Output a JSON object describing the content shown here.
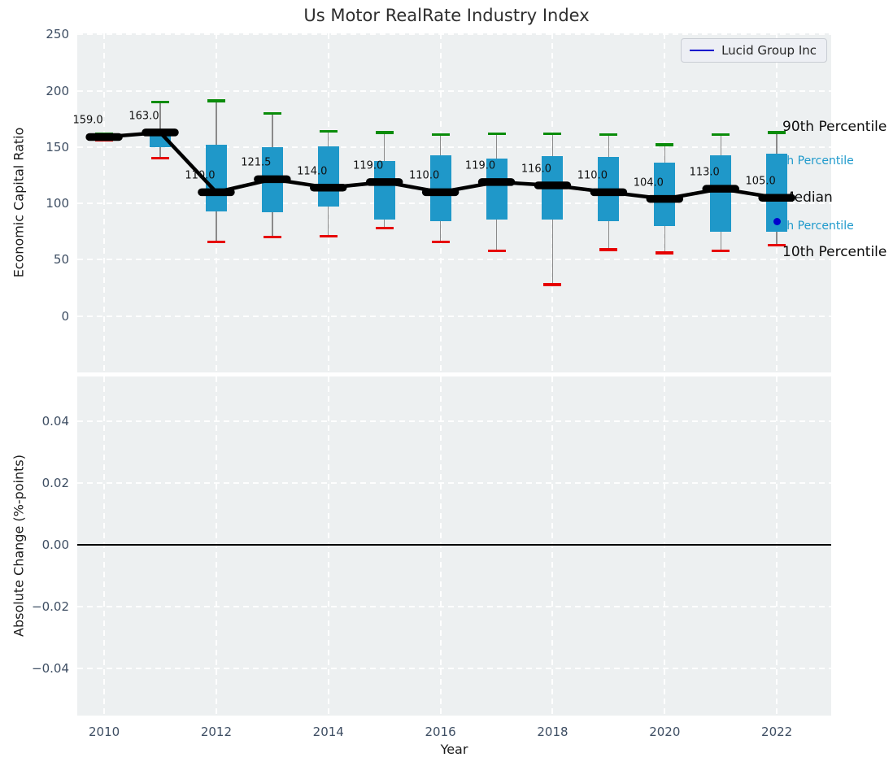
{
  "title": "Us Motor RealRate Industry Index",
  "legend": {
    "label": "Lucid Group Inc"
  },
  "colors": {
    "figure_bg": "#ffffff",
    "axes_bg": "#edf0f1",
    "grid": "#ffffff",
    "box": "#1f98c9",
    "whisker": "#8a8a8a",
    "cap_top": "#0a8c0a",
    "cap_bottom": "#e60000",
    "median": "#000000",
    "lucid": "#0000cd",
    "percentile_label": "#1f9acc",
    "tick": "#3e4e63"
  },
  "chart_data": [
    {
      "type": "boxplot-line",
      "title": "Us Motor RealRate Industry Index",
      "xlabel": "Year",
      "ylabel": "Economic Capital Ratio",
      "xlim": [
        2009.52,
        2022.97
      ],
      "ylim": [
        -50,
        251
      ],
      "xticks": [
        2010,
        2012,
        2014,
        2016,
        2018,
        2020,
        2022
      ],
      "yticks": [
        250,
        200,
        150,
        100,
        50,
        0
      ],
      "grid": true,
      "legend_entries": [
        {
          "label": "Lucid Group Inc",
          "color": "#0000cd",
          "position": "upper right"
        }
      ],
      "years": [
        2010,
        2011,
        2012,
        2013,
        2014,
        2015,
        2016,
        2017,
        2018,
        2019,
        2020,
        2021,
        2022
      ],
      "series": [
        {
          "name": "Median",
          "values": [
            159,
            163,
            110,
            121.5,
            114,
            119,
            110,
            119,
            116,
            110,
            104,
            113,
            105
          ]
        },
        {
          "name": "90th Percentile",
          "values": [
            162,
            190,
            191,
            180,
            164,
            163,
            161,
            162,
            162,
            161,
            152,
            161,
            163
          ]
        },
        {
          "name": "75th Percentile",
          "values": [
            160.5,
            163,
            152,
            150,
            151,
            138,
            143,
            140,
            142,
            141,
            136,
            143,
            144
          ]
        },
        {
          "name": "25th Percentile",
          "values": [
            157.5,
            150,
            93,
            92,
            97,
            86,
            84,
            86,
            86,
            84,
            80,
            75,
            75
          ]
        },
        {
          "name": "10th Percentile",
          "values": [
            156,
            140,
            66,
            70,
            71,
            78,
            66,
            58,
            28,
            59,
            56,
            58,
            63
          ]
        }
      ],
      "median_labels": [
        "159.0",
        "163.0",
        "110.0",
        "121.5",
        "114.0",
        "119.0",
        "110.0",
        "119.0",
        "116.0",
        "110.0",
        "104.0",
        "113.0",
        "105.0"
      ],
      "point": {
        "series": "Lucid Group Inc",
        "year": 2022,
        "value": 84
      },
      "annotations": [
        {
          "text": "90th Percentile",
          "value": 168,
          "style": "black",
          "size": 17
        },
        {
          "text": "75th Percentile",
          "value": 138,
          "style": "cyan",
          "size": 14
        },
        {
          "text": "Median",
          "value": 105.5,
          "style": "black",
          "size": 17
        },
        {
          "text": "25th Percentile",
          "value": 80,
          "style": "cyan",
          "size": 14
        },
        {
          "text": "10th Percentile",
          "value": 56.5,
          "style": "black",
          "size": 17
        }
      ]
    },
    {
      "type": "line",
      "xlabel": "Year",
      "ylabel": "Absolute Change (%-points)",
      "xlim": [
        2009.52,
        2022.97
      ],
      "ylim": [
        -0.0553,
        0.0545
      ],
      "xticks": [
        2010,
        2012,
        2014,
        2016,
        2018,
        2020,
        2022
      ],
      "yticks": [
        0.04,
        0.02,
        0,
        -0.02,
        -0.04
      ],
      "ytick_labels": [
        "0.04",
        "0.02",
        "0.00",
        "−0.02",
        "−0.04"
      ],
      "grid": true,
      "zero_line": 0,
      "series": []
    }
  ]
}
